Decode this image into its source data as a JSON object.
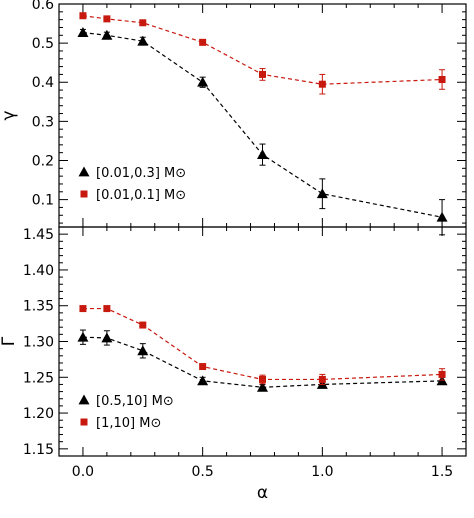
{
  "chart_data": [
    {
      "type": "line",
      "panel": "top",
      "xlabel": "",
      "ylabel": "γ",
      "xlim": [
        -0.1,
        1.6
      ],
      "ylim": [
        0.03,
        0.6
      ],
      "xticks": [
        0.0,
        0.5,
        1.0,
        1.5
      ],
      "xtick_labels": [
        "0.0",
        "0.5",
        "1.0",
        "1.5"
      ],
      "yticks": [
        0.1,
        0.2,
        0.3,
        0.4,
        0.5,
        0.6
      ],
      "ytick_labels": [
        "0.1",
        "0.2",
        "0.3",
        "0.4",
        "0.5",
        "0.6"
      ],
      "legend_position": "bottom-left",
      "x": [
        0.0,
        0.1,
        0.25,
        0.5,
        0.75,
        1.0,
        1.5
      ],
      "series": [
        {
          "name": "[0.01,0.3] M⊙",
          "marker": "triangle",
          "color": "#000000",
          "values": [
            0.527,
            0.52,
            0.505,
            0.4,
            0.215,
            0.115,
            0.055
          ],
          "errors": [
            0.008,
            0.008,
            0.01,
            0.013,
            0.027,
            0.038,
            0.045
          ]
        },
        {
          "name": "[0.01,0.1] M⊙",
          "marker": "square",
          "color": "#c8190f",
          "values": [
            0.57,
            0.562,
            0.552,
            0.502,
            0.42,
            0.395,
            0.407
          ],
          "errors": [
            0.004,
            0.004,
            0.005,
            0.006,
            0.015,
            0.025,
            0.025
          ]
        }
      ]
    },
    {
      "type": "line",
      "panel": "bottom",
      "xlabel": "α",
      "ylabel": "Γ",
      "xlim": [
        -0.1,
        1.6
      ],
      "ylim": [
        1.14,
        1.46
      ],
      "xticks": [
        0.0,
        0.5,
        1.0,
        1.5
      ],
      "xtick_labels": [
        "0.0",
        "0.5",
        "1.0",
        "1.5"
      ],
      "yticks": [
        1.15,
        1.2,
        1.25,
        1.3,
        1.35,
        1.4,
        1.45
      ],
      "ytick_labels": [
        "1.15",
        "1.20",
        "1.25",
        "1.30",
        "1.35",
        "1.40",
        "1.45"
      ],
      "legend_position": "bottom-left",
      "x": [
        0.0,
        0.1,
        0.25,
        0.5,
        0.75,
        1.0,
        1.5
      ],
      "series": [
        {
          "name": "[0.5,10] M⊙",
          "marker": "triangle",
          "color": "#000000",
          "values": [
            1.306,
            1.305,
            1.287,
            1.245,
            1.236,
            1.24,
            1.245
          ],
          "errors": [
            0.01,
            0.01,
            0.01,
            0.005,
            0.004,
            0.005,
            0.005
          ]
        },
        {
          "name": "[1,10] M⊙",
          "marker": "square",
          "color": "#c8190f",
          "values": [
            1.346,
            1.346,
            1.323,
            1.265,
            1.247,
            1.247,
            1.254
          ],
          "errors": [
            0.002,
            0.002,
            0.002,
            0.003,
            0.006,
            0.007,
            0.008
          ]
        }
      ]
    }
  ]
}
